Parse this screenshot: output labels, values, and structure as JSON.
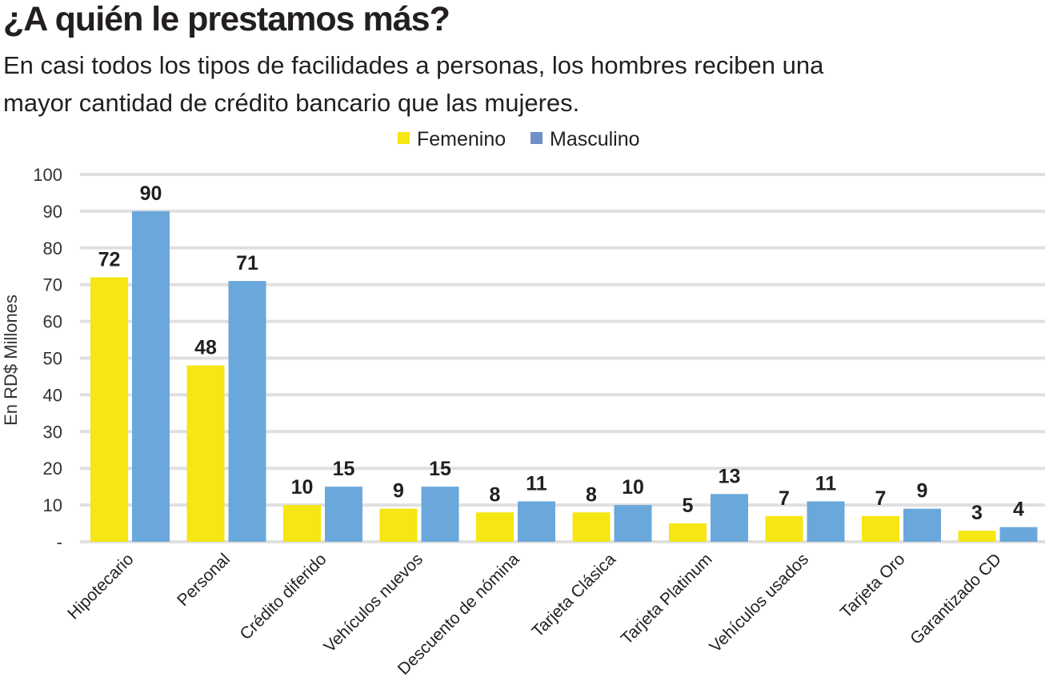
{
  "title": "¿A quién le prestamos más?",
  "subtitle": "En casi todos los tipos de facilidades a personas, los hombres reciben una mayor cantidad de crédito bancario que las mujeres.",
  "chart_data": {
    "type": "bar",
    "title": "¿A quién le prestamos más?",
    "ylabel": "En RD$ Millones",
    "xlabel": "",
    "ylim": [
      0,
      100
    ],
    "yticks": [
      0,
      10,
      20,
      30,
      40,
      50,
      60,
      70,
      80,
      90,
      100
    ],
    "ytick_labels": [
      "-",
      "10",
      "20",
      "30",
      "40",
      "50",
      "60",
      "70",
      "80",
      "90",
      "100"
    ],
    "grid": true,
    "legend_position": "top-center",
    "categories": [
      "Hipotecario",
      "Personal",
      "Crédito diferido",
      "Vehículos nuevos",
      "Descuento de nómina",
      "Tarjeta Clásica",
      "Tarjeta Platinum",
      "Vehículos usados",
      "Tarjeta Oro",
      "Garantizado CD"
    ],
    "series": [
      {
        "name": "Femenino",
        "color": "#f5e614",
        "legend_color": "#f5e614",
        "values": [
          72,
          48,
          10,
          9,
          8,
          8,
          5,
          7,
          7,
          3
        ]
      },
      {
        "name": "Masculino",
        "color": "#6aa8dc",
        "legend_color": "#6f8fca",
        "values": [
          90,
          71,
          15,
          15,
          11,
          10,
          13,
          11,
          9,
          4
        ]
      }
    ]
  }
}
